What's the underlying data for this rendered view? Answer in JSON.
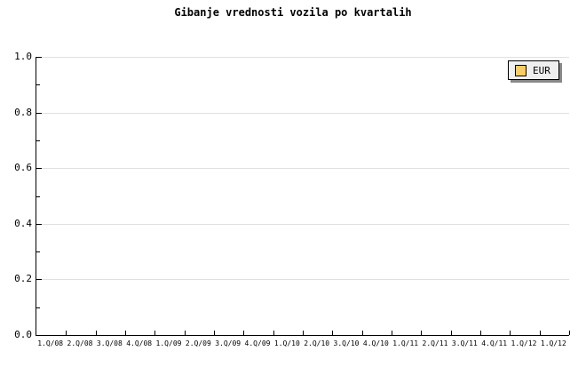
{
  "chart_data": {
    "type": "line",
    "title": "Gibanje vrednosti vozila po kvartalih",
    "x_categories": [
      "1.Q/08",
      "2.Q/08",
      "3.Q/08",
      "4.Q/08",
      "1.Q/09",
      "2.Q/09",
      "3.Q/09",
      "4.Q/09",
      "1.Q/10",
      "2.Q/10",
      "3.Q/10",
      "4.Q/10",
      "1.Q/11",
      "2.Q/11",
      "3.Q/11",
      "4.Q/11",
      "1.Q/12",
      "1.Q/12"
    ],
    "y_tick_labels": [
      "0.0",
      "0.2",
      "0.4",
      "0.6",
      "0.8",
      "1.0"
    ],
    "y_tick_values": [
      0.0,
      0.2,
      0.4,
      0.6,
      0.8,
      1.0
    ],
    "y_minor_tick_values": [
      0.1,
      0.3,
      0.5,
      0.7,
      0.9
    ],
    "ylim": [
      0.0,
      1.0
    ],
    "grid": "horizontal gridlines at major y ticks",
    "legend_position": "top-right",
    "series": [
      {
        "name": "EUR",
        "swatch_color": "#fbcc66",
        "values": []
      }
    ]
  },
  "colors": {
    "background": "#ffffff",
    "axis": "#000000",
    "gridline": "#e0e0e0",
    "text": "#000000",
    "legend_background": "#efefef",
    "legend_border": "#000000",
    "legend_shadow": "#888888"
  }
}
